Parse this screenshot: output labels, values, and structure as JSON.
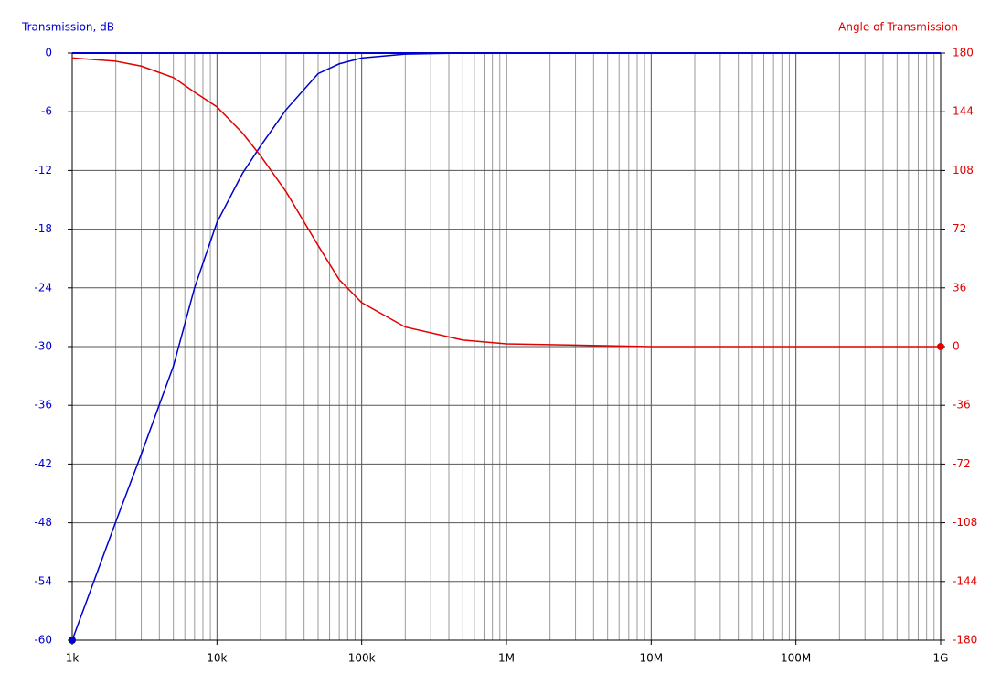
{
  "chart_data": {
    "type": "line",
    "y_label": "Transmission, dB",
    "y2_label": "Angle of Transmission",
    "xscale": "log",
    "grid": true,
    "minor_grid": true,
    "xlim": [
      1000,
      1000000000
    ],
    "xticks": [
      {
        "value": 1000,
        "label": "1k"
      },
      {
        "value": 10000,
        "label": "10k"
      },
      {
        "value": 100000,
        "label": "100k"
      },
      {
        "value": 1000000,
        "label": "1M"
      },
      {
        "value": 10000000,
        "label": "10M"
      },
      {
        "value": 100000000,
        "label": "100M"
      },
      {
        "value": 1000000000,
        "label": "1G"
      }
    ],
    "ylim": [
      -60,
      0
    ],
    "yticks": [
      -60,
      -54,
      -48,
      -42,
      -36,
      -30,
      -24,
      -18,
      -12,
      -6,
      0
    ],
    "y2lim": [
      -180,
      180
    ],
    "y2ticks": [
      -180,
      -144,
      -108,
      -72,
      -36,
      0,
      36,
      72,
      108,
      144,
      180
    ],
    "x": [
      1000,
      2000,
      3000,
      5000,
      7000,
      10000,
      15000,
      20000,
      30000,
      50000,
      70000,
      100000,
      200000,
      500000,
      1000000,
      10000000,
      100000000,
      1000000000
    ],
    "series": [
      {
        "name": "Transmission, dB",
        "color": "#0000cc",
        "axis": "y",
        "marker": "first",
        "values": [
          -60,
          -47.9,
          -41,
          -32,
          -24,
          -17.3,
          -12.3,
          -9.5,
          -5.8,
          -2.1,
          -1.1,
          -0.5,
          -0.1,
          0,
          0,
          0,
          0,
          0
        ]
      },
      {
        "name": "Angle of Transmission",
        "color": "#e00000",
        "axis": "y2",
        "marker": "last",
        "values": [
          177,
          175,
          172,
          165,
          156,
          147,
          131,
          117,
          95,
          62,
          41,
          27,
          12,
          4,
          1.7,
          0,
          0,
          0
        ]
      }
    ]
  }
}
